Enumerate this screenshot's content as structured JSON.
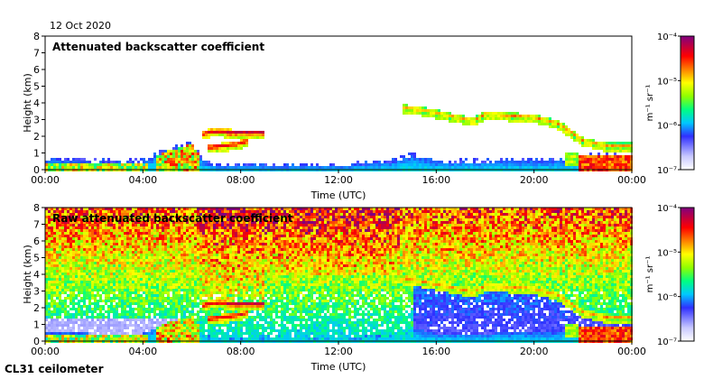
{
  "date": "12 Oct 2020",
  "instrument": "CL31 ceilometer",
  "chart_data": [
    {
      "type": "heatmap",
      "title": "Attenuated backscatter coefficient",
      "xlabel": "Time (UTC)",
      "ylabel": "Height (km)",
      "xlim": [
        0,
        24
      ],
      "ylim": [
        0,
        8
      ],
      "xticks": [
        0,
        4,
        8,
        12,
        16,
        20,
        24
      ],
      "xtick_labels": [
        "00:00",
        "04:00",
        "08:00",
        "12:00",
        "16:00",
        "20:00",
        "00:00"
      ],
      "yticks": [
        0,
        1,
        2,
        3,
        4,
        5,
        6,
        7,
        8
      ],
      "ytick_labels": [
        "0",
        "1",
        "2",
        "3",
        "4",
        "5",
        "6",
        "7",
        "8"
      ],
      "colorbar": {
        "scale": "log",
        "range": [
          1e-07,
          0.0001
        ],
        "units": "m⁻¹ sr⁻¹",
        "tick_values": [
          1e-07,
          1e-06,
          1e-05,
          0.0001
        ],
        "tick_labels": [
          "10⁻⁷",
          "10⁻⁶",
          "10⁻⁵",
          "10⁻⁴"
        ]
      }
    },
    {
      "type": "heatmap",
      "title": "Raw attenuated backscatter coefficient",
      "xlabel": "Time (UTC)",
      "ylabel": "Height (km)",
      "xlim": [
        0,
        24
      ],
      "ylim": [
        0,
        8
      ],
      "xticks": [
        0,
        4,
        8,
        12,
        16,
        20,
        24
      ],
      "xtick_labels": [
        "00:00",
        "04:00",
        "08:00",
        "12:00",
        "16:00",
        "20:00",
        "00:00"
      ],
      "yticks": [
        0,
        1,
        2,
        3,
        4,
        5,
        6,
        7,
        8
      ],
      "ytick_labels": [
        "0",
        "1",
        "2",
        "3",
        "4",
        "5",
        "6",
        "7",
        "8"
      ],
      "colorbar": {
        "scale": "log",
        "range": [
          1e-07,
          0.0001
        ],
        "units": "m⁻¹ sr⁻¹",
        "tick_values": [
          1e-07,
          1e-06,
          1e-05,
          0.0001
        ],
        "tick_labels": [
          "10⁻⁷",
          "10⁻⁶",
          "10⁻⁵",
          "10⁻⁴"
        ]
      }
    }
  ],
  "features": {
    "boundary_layer_top": [
      [
        0,
        0.6
      ],
      [
        1,
        0.6
      ],
      [
        2,
        0.55
      ],
      [
        3,
        0.5
      ],
      [
        4,
        0.55
      ],
      [
        5,
        1.2
      ],
      [
        6,
        1.6
      ],
      [
        6.5,
        0.5
      ],
      [
        7,
        0.3
      ],
      [
        10,
        0.3
      ],
      [
        12,
        0.3
      ],
      [
        14,
        0.5
      ],
      [
        15,
        0.9
      ],
      [
        16,
        0.55
      ],
      [
        18,
        0.55
      ],
      [
        20,
        0.6
      ],
      [
        21,
        0.6
      ],
      [
        22,
        0.8
      ],
      [
        23,
        1.0
      ],
      [
        24,
        1.0
      ]
    ],
    "cloud_layers": [
      {
        "points": [
          [
            6.4,
            2.2
          ],
          [
            6.8,
            2.35
          ],
          [
            7.3,
            2.35
          ],
          [
            7.6,
            2.3
          ]
        ],
        "strength": 0.9
      },
      {
        "points": [
          [
            7.4,
            2.3
          ],
          [
            8.0,
            2.3
          ],
          [
            8.5,
            2.3
          ],
          [
            9.0,
            2.3
          ]
        ],
        "strength": 0.95
      },
      {
        "points": [
          [
            6.6,
            1.4
          ],
          [
            7.2,
            1.5
          ],
          [
            7.8,
            1.6
          ],
          [
            8.3,
            1.8
          ]
        ],
        "strength": 0.9
      },
      {
        "points": [
          [
            14.6,
            3.8
          ],
          [
            15.5,
            3.6
          ],
          [
            16.5,
            3.3
          ],
          [
            17.5,
            3.0
          ],
          [
            18.0,
            3.4
          ],
          [
            19.0,
            3.3
          ],
          [
            20.0,
            3.2
          ],
          [
            21.0,
            2.8
          ],
          [
            22.0,
            1.8
          ],
          [
            23.0,
            1.5
          ],
          [
            24.0,
            1.5
          ]
        ],
        "strength": 0.75
      }
    ],
    "low_cloud_base": {
      "start": 21.8,
      "end": 24,
      "height": 0.9
    }
  }
}
